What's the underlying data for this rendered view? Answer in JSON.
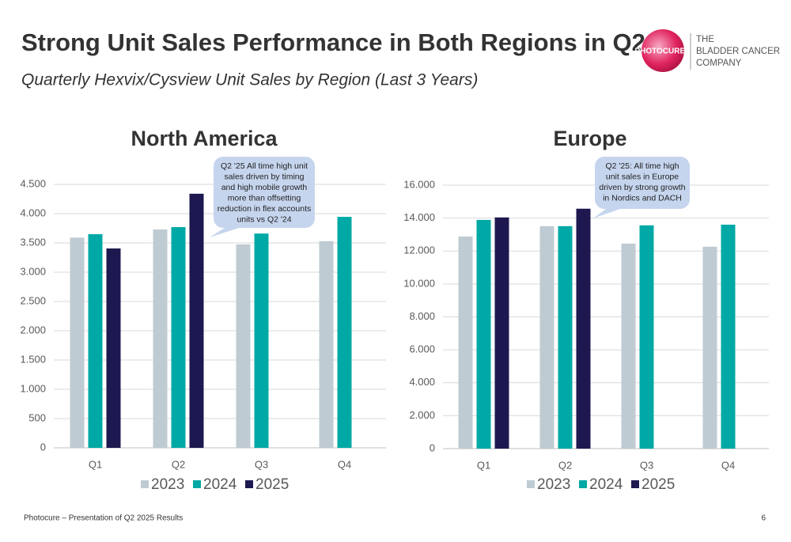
{
  "header": {
    "title": "Strong Unit Sales Performance in Both Regions in Q2",
    "subtitle": "Quarterly Hexvix/Cysview Unit Sales by Region (Last 3 Years)",
    "logo": {
      "brand": "PHOTOCURE®",
      "tagline": [
        "THE",
        "BLADDER CANCER",
        "COMPANY"
      ]
    }
  },
  "chart_data": [
    {
      "type": "bar",
      "title": "North America",
      "categories": [
        "Q1",
        "Q2",
        "Q3",
        "Q4"
      ],
      "series": [
        {
          "name": "2023",
          "color": "#bfcbd2",
          "values": [
            3590,
            3730,
            3475,
            3530
          ]
        },
        {
          "name": "2024",
          "color": "#00a9a5",
          "values": [
            3650,
            3770,
            3660,
            3945
          ]
        },
        {
          "name": "2025",
          "color": "#1e1850",
          "values": [
            3405,
            4340,
            null,
            null
          ]
        }
      ],
      "ylim": [
        0,
        4500
      ],
      "yticks": [
        0,
        500,
        {
          "value": 1000,
          "label": "1.000"
        },
        {
          "value": 1500,
          "label": "1.500"
        },
        {
          "value": 2000,
          "label": "2.000"
        },
        {
          "value": 2500,
          "label": "2.500"
        },
        {
          "value": 3000,
          "label": "3.000"
        },
        {
          "value": 3500,
          "label": "3.500"
        },
        {
          "value": 4000,
          "label": "4.000"
        },
        {
          "value": 4500,
          "label": "4.500"
        }
      ],
      "grid": true,
      "legend": "bottom",
      "annotation": [
        "Q2 '25 All time high unit",
        "sales driven by timing",
        "and high mobile growth",
        "more than offsetting",
        "reduction in flex accounts",
        "units vs Q2 '24"
      ]
    },
    {
      "type": "bar",
      "title": "Europe",
      "categories": [
        "Q1",
        "Q2",
        "Q3",
        "Q4"
      ],
      "series": [
        {
          "name": "2023",
          "color": "#bfcbd2",
          "values": [
            12880,
            13510,
            12450,
            12260
          ]
        },
        {
          "name": "2024",
          "color": "#00a9a5",
          "values": [
            13890,
            13510,
            13560,
            13600
          ]
        },
        {
          "name": "2025",
          "color": "#1e1850",
          "values": [
            14040,
            14570,
            null,
            null
          ]
        }
      ],
      "ylim": [
        0,
        16000
      ],
      "yticks": [
        0,
        {
          "value": 2000,
          "label": "2.000"
        },
        {
          "value": 4000,
          "label": "4.000"
        },
        {
          "value": 6000,
          "label": "6.000"
        },
        {
          "value": 8000,
          "label": "8.000"
        },
        {
          "value": 10000,
          "label": "10.000"
        },
        {
          "value": 12000,
          "label": "12.000"
        },
        {
          "value": 14000,
          "label": "14.000"
        },
        {
          "value": 16000,
          "label": "16.000"
        }
      ],
      "grid": true,
      "legend": "bottom",
      "annotation": [
        "Q2 '25: All time high",
        "unit sales in Europe",
        "driven by strong growth",
        "in Nordics and DACH"
      ]
    }
  ],
  "footer": {
    "text": "Photocure – Presentation of Q2 2025 Results",
    "page": "6"
  }
}
